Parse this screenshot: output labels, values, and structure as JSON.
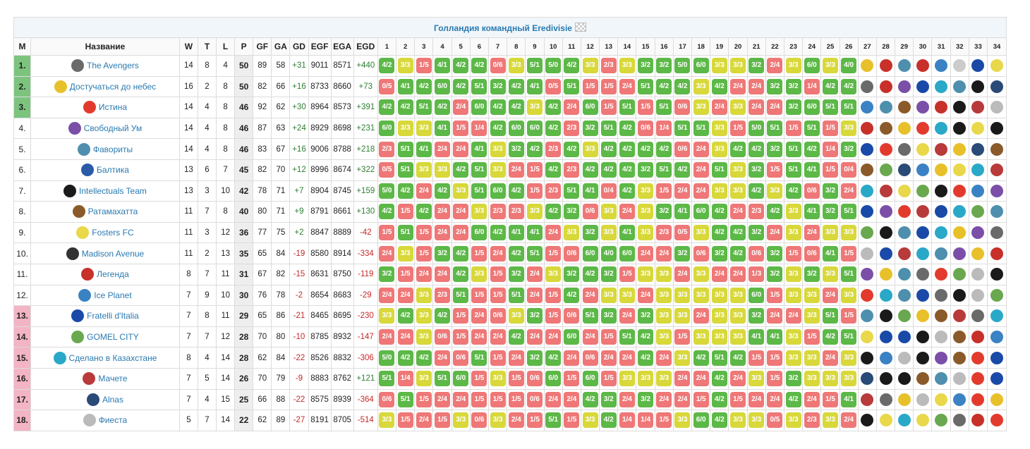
{
  "table": {
    "title": "Голландия командный Eredivisie",
    "title_flag_icon": "checkered-flag-icon",
    "headers": [
      "М",
      "Название",
      "W",
      "T",
      "L",
      "P",
      "GF",
      "GA",
      "GD",
      "EGF",
      "EGA",
      "EGD"
    ],
    "rounds": [
      "1",
      "2",
      "3",
      "4",
      "5",
      "6",
      "7",
      "8",
      "9",
      "10",
      "11",
      "12",
      "13",
      "14",
      "15",
      "16",
      "17",
      "18",
      "19",
      "20",
      "21",
      "22",
      "23",
      "24",
      "25",
      "26",
      "27",
      "28",
      "29",
      "30",
      "31",
      "32",
      "33",
      "34"
    ],
    "teams": [
      {
        "pos": "1.",
        "zone": "green",
        "name": "The Avengers",
        "logo_color": "#6a6a6a",
        "w": "14",
        "t": "8",
        "l": "4",
        "p": "50",
        "gf": "89",
        "ga": "58",
        "gd": "+31",
        "egf": "9011",
        "ega": "8571",
        "egd": "+440"
      },
      {
        "pos": "2.",
        "zone": "green",
        "name": "Достучаться до небес",
        "logo_color": "#e8c02a",
        "w": "16",
        "t": "2",
        "l": "8",
        "p": "50",
        "gf": "82",
        "ga": "66",
        "gd": "+16",
        "egf": "8733",
        "ega": "8660",
        "egd": "+73"
      },
      {
        "pos": "3.",
        "zone": "green",
        "name": "Истина",
        "logo_color": "#e23b2e",
        "w": "14",
        "t": "4",
        "l": "8",
        "p": "46",
        "gf": "92",
        "ga": "62",
        "gd": "+30",
        "egf": "8964",
        "ega": "8573",
        "egd": "+391"
      },
      {
        "pos": "4.",
        "zone": "",
        "name": "Свободный Ум",
        "logo_color": "#7b4fa8",
        "w": "14",
        "t": "4",
        "l": "8",
        "p": "46",
        "gf": "87",
        "ga": "63",
        "gd": "+24",
        "egf": "8929",
        "ega": "8698",
        "egd": "+231"
      },
      {
        "pos": "5.",
        "zone": "",
        "name": "Фавориты",
        "logo_color": "#4e8fae",
        "w": "14",
        "t": "4",
        "l": "8",
        "p": "46",
        "gf": "83",
        "ga": "67",
        "gd": "+16",
        "egf": "9006",
        "ega": "8788",
        "egd": "+218"
      },
      {
        "pos": "6.",
        "zone": "",
        "name": "Балтика",
        "logo_color": "#2a5aa8",
        "w": "13",
        "t": "6",
        "l": "7",
        "p": "45",
        "gf": "82",
        "ga": "70",
        "gd": "+12",
        "egf": "8996",
        "ega": "8674",
        "egd": "+322"
      },
      {
        "pos": "7.",
        "zone": "",
        "name": "Intellectuals Team",
        "logo_color": "#1a1a1a",
        "w": "13",
        "t": "3",
        "l": "10",
        "p": "42",
        "gf": "78",
        "ga": "71",
        "gd": "+7",
        "egf": "8904",
        "ega": "8745",
        "egd": "+159"
      },
      {
        "pos": "8.",
        "zone": "",
        "name": "Ратамахатта",
        "logo_color": "#8a5a2a",
        "w": "11",
        "t": "7",
        "l": "8",
        "p": "40",
        "gf": "80",
        "ga": "71",
        "gd": "+9",
        "egf": "8791",
        "ega": "8661",
        "egd": "+130"
      },
      {
        "pos": "9.",
        "zone": "",
        "name": "Fosters FC",
        "logo_color": "#e8d84a",
        "w": "11",
        "t": "3",
        "l": "12",
        "p": "36",
        "gf": "77",
        "ga": "75",
        "gd": "+2",
        "egf": "8847",
        "ega": "8889",
        "egd": "-42"
      },
      {
        "pos": "10.",
        "zone": "",
        "name": "Madison Avenue",
        "logo_color": "#333333",
        "w": "11",
        "t": "2",
        "l": "13",
        "p": "35",
        "gf": "65",
        "ga": "84",
        "gd": "-19",
        "egf": "8580",
        "ega": "8914",
        "egd": "-334"
      },
      {
        "pos": "11.",
        "zone": "",
        "name": "Легенда",
        "logo_color": "#c8302a",
        "w": "8",
        "t": "7",
        "l": "11",
        "p": "31",
        "gf": "67",
        "ga": "82",
        "gd": "-15",
        "egf": "8631",
        "ega": "8750",
        "egd": "-119"
      },
      {
        "pos": "12.",
        "zone": "",
        "name": "Ice Planet",
        "logo_color": "#3a82c4",
        "w": "7",
        "t": "9",
        "l": "10",
        "p": "30",
        "gf": "76",
        "ga": "78",
        "gd": "-2",
        "egf": "8654",
        "ega": "8683",
        "egd": "-29"
      },
      {
        "pos": "13.",
        "zone": "pink",
        "name": "Fratelli d'Italia",
        "logo_color": "#1a4aa8",
        "w": "7",
        "t": "8",
        "l": "11",
        "p": "29",
        "gf": "65",
        "ga": "86",
        "gd": "-21",
        "egf": "8465",
        "ega": "8695",
        "egd": "-230"
      },
      {
        "pos": "14.",
        "zone": "pink",
        "name": "GOMEL CITY",
        "logo_color": "#6aa84f",
        "w": "7",
        "t": "7",
        "l": "12",
        "p": "28",
        "gf": "70",
        "ga": "80",
        "gd": "-10",
        "egf": "8785",
        "ega": "8932",
        "egd": "-147"
      },
      {
        "pos": "15.",
        "zone": "pink",
        "name": "Сделано в Казахстане",
        "logo_color": "#2aa8c8",
        "w": "8",
        "t": "4",
        "l": "14",
        "p": "28",
        "gf": "62",
        "ga": "84",
        "gd": "-22",
        "egf": "8526",
        "ega": "8832",
        "egd": "-306"
      },
      {
        "pos": "16.",
        "zone": "pink",
        "name": "Мачете",
        "logo_color": "#b83a3a",
        "w": "7",
        "t": "5",
        "l": "14",
        "p": "26",
        "gf": "70",
        "ga": "79",
        "gd": "-9",
        "egf": "8883",
        "ega": "8762",
        "egd": "+121"
      },
      {
        "pos": "17.",
        "zone": "pink",
        "name": "Alnas",
        "logo_color": "#2a4a78",
        "w": "7",
        "t": "4",
        "l": "15",
        "p": "25",
        "gf": "66",
        "ga": "88",
        "gd": "-22",
        "egf": "8575",
        "ega": "8939",
        "egd": "-364"
      },
      {
        "pos": "18.",
        "zone": "pink",
        "name": "Фиеста",
        "logo_color": "#bbbbbb",
        "w": "5",
        "t": "7",
        "l": "14",
        "p": "22",
        "gf": "62",
        "ga": "89",
        "gd": "-27",
        "egf": "8191",
        "ega": "8705",
        "egd": "-514"
      }
    ],
    "results": [
      [
        "4/2",
        "3/3",
        "1/5",
        "4/1",
        "4/2",
        "4/2",
        "0/6",
        "3/3",
        "5/1",
        "5/0",
        "4/2",
        "3/3",
        "2/3",
        "3/3",
        "3/2",
        "3/2",
        "5/0",
        "6/0",
        "3/3",
        "3/3",
        "3/2",
        "2/4",
        "3/3",
        "6/0",
        "3/3",
        "4/0"
      ],
      [
        "0/5",
        "4/1",
        "4/2",
        "6/0",
        "4/2",
        "5/1",
        "3/2",
        "4/2",
        "4/1",
        "0/5",
        "5/1",
        "1/5",
        "1/5",
        "2/4",
        "5/1",
        "4/2",
        "4/2",
        "3/3",
        "4/2",
        "2/4",
        "2/4",
        "3/2",
        "3/2",
        "1/4",
        "4/2",
        "4/2"
      ],
      [
        "4/2",
        "4/2",
        "5/1",
        "4/2",
        "2/4",
        "6/0",
        "4/2",
        "4/2",
        "3/3",
        "4/2",
        "2/4",
        "6/0",
        "1/5",
        "5/1",
        "1/5",
        "5/1",
        "0/6",
        "3/3",
        "2/4",
        "3/3",
        "2/4",
        "2/4",
        "3/2",
        "6/0",
        "5/1",
        "5/1"
      ],
      [
        "6/0",
        "3/3",
        "3/3",
        "4/1",
        "1/5",
        "1/4",
        "4/2",
        "6/0",
        "6/0",
        "4/2",
        "2/3",
        "3/2",
        "5/1",
        "4/2",
        "0/6",
        "1/4",
        "5/1",
        "5/1",
        "3/3",
        "1/5",
        "5/0",
        "5/1",
        "1/5",
        "5/1",
        "1/5",
        "3/3"
      ],
      [
        "2/3",
        "5/1",
        "4/1",
        "2/4",
        "2/4",
        "4/1",
        "3/3",
        "3/2",
        "4/2",
        "2/3",
        "4/2",
        "3/3",
        "4/2",
        "4/2",
        "4/2",
        "4/2",
        "0/6",
        "2/4",
        "3/3",
        "4/2",
        "4/2",
        "3/2",
        "5/1",
        "4/2",
        "1/4",
        "3/2"
      ],
      [
        "0/5",
        "5/1",
        "3/3",
        "3/3",
        "4/2",
        "5/1",
        "3/3",
        "2/4",
        "1/5",
        "4/2",
        "2/3",
        "4/2",
        "4/2",
        "4/2",
        "3/2",
        "5/1",
        "4/2",
        "2/4",
        "5/1",
        "3/3",
        "3/2",
        "1/5",
        "5/1",
        "4/1",
        "1/5",
        "0/4"
      ],
      [
        "5/0",
        "4/2",
        "2/4",
        "4/2",
        "3/3",
        "5/1",
        "6/0",
        "4/2",
        "1/5",
        "2/3",
        "5/1",
        "4/1",
        "0/4",
        "4/2",
        "3/3",
        "1/5",
        "2/4",
        "2/4",
        "3/3",
        "3/3",
        "4/2",
        "3/3",
        "4/2",
        "0/6",
        "3/2",
        "2/4"
      ],
      [
        "4/2",
        "1/5",
        "4/2",
        "2/4",
        "2/4",
        "3/3",
        "2/3",
        "2/3",
        "3/3",
        "4/2",
        "3/2",
        "0/6",
        "3/3",
        "2/4",
        "3/3",
        "3/2",
        "4/1",
        "6/0",
        "4/2",
        "2/4",
        "2/3",
        "4/2",
        "3/3",
        "4/1",
        "3/2",
        "5/1"
      ],
      [
        "1/5",
        "5/1",
        "1/5",
        "2/4",
        "2/4",
        "6/0",
        "4/2",
        "4/1",
        "4/1",
        "2/4",
        "3/3",
        "3/2",
        "3/3",
        "4/1",
        "3/3",
        "2/3",
        "0/5",
        "3/3",
        "4/2",
        "4/2",
        "3/2",
        "2/4",
        "3/3",
        "2/4",
        "3/3",
        "3/3"
      ],
      [
        "2/4",
        "3/3",
        "1/5",
        "3/2",
        "4/2",
        "1/5",
        "2/4",
        "4/2",
        "5/1",
        "1/5",
        "0/6",
        "6/0",
        "4/0",
        "6/0",
        "2/4",
        "2/4",
        "3/2",
        "0/6",
        "3/2",
        "4/2",
        "0/6",
        "3/2",
        "1/5",
        "0/6",
        "4/1",
        "1/5"
      ],
      [
        "3/2",
        "1/5",
        "2/4",
        "2/4",
        "4/2",
        "3/3",
        "1/5",
        "3/2",
        "2/4",
        "3/3",
        "3/2",
        "4/2",
        "3/2",
        "1/5",
        "3/3",
        "3/3",
        "2/4",
        "3/3",
        "2/4",
        "2/4",
        "1/3",
        "3/2",
        "3/3",
        "3/2",
        "3/3",
        "5/1"
      ],
      [
        "2/4",
        "2/4",
        "3/3",
        "2/3",
        "5/1",
        "1/5",
        "1/5",
        "5/1",
        "2/4",
        "1/5",
        "4/2",
        "2/4",
        "3/3",
        "3/3",
        "2/4",
        "3/3",
        "3/3",
        "3/3",
        "3/3",
        "3/3",
        "6/0",
        "1/5",
        "3/3",
        "3/3",
        "2/4",
        "3/3"
      ],
      [
        "3/3",
        "4/2",
        "3/3",
        "4/2",
        "1/5",
        "2/4",
        "0/6",
        "3/3",
        "3/2",
        "1/5",
        "0/6",
        "5/1",
        "3/2",
        "2/4",
        "3/2",
        "3/3",
        "3/3",
        "2/4",
        "3/3",
        "3/3",
        "3/2",
        "2/4",
        "2/4",
        "3/3",
        "5/1",
        "1/5"
      ],
      [
        "2/4",
        "2/4",
        "3/3",
        "0/6",
        "1/5",
        "2/4",
        "2/4",
        "4/2",
        "2/4",
        "2/4",
        "6/0",
        "2/4",
        "1/5",
        "5/1",
        "4/2",
        "3/3",
        "1/5",
        "3/3",
        "3/3",
        "3/3",
        "4/1",
        "4/1",
        "3/3",
        "1/5",
        "4/2",
        "5/1"
      ],
      [
        "5/0",
        "4/2",
        "4/2",
        "2/4",
        "0/6",
        "5/1",
        "1/5",
        "2/4",
        "3/2",
        "4/2",
        "2/4",
        "0/6",
        "2/4",
        "2/4",
        "4/2",
        "2/4",
        "3/3",
        "4/2",
        "5/1",
        "4/2",
        "1/5",
        "1/5",
        "3/3",
        "3/3",
        "2/4",
        "3/3"
      ],
      [
        "5/1",
        "1/4",
        "3/3",
        "5/1",
        "6/0",
        "1/5",
        "3/3",
        "1/5",
        "0/6",
        "6/0",
        "1/5",
        "6/0",
        "1/5",
        "3/3",
        "3/3",
        "3/3",
        "2/4",
        "2/4",
        "4/2",
        "2/4",
        "3/3",
        "1/5",
        "3/2",
        "3/3",
        "3/3",
        "3/3"
      ],
      [
        "0/6",
        "5/1",
        "1/5",
        "2/4",
        "2/4",
        "1/5",
        "1/5",
        "1/5",
        "0/6",
        "2/4",
        "2/4",
        "4/2",
        "3/2",
        "2/4",
        "3/2",
        "2/4",
        "2/4",
        "1/5",
        "4/2",
        "1/5",
        "2/4",
        "2/4",
        "4/2",
        "2/4",
        "1/5",
        "4/1"
      ],
      [
        "3/3",
        "1/5",
        "2/4",
        "1/5",
        "3/3",
        "0/6",
        "3/3",
        "2/4",
        "1/5",
        "5/1",
        "1/5",
        "3/3",
        "4/2",
        "1/4",
        "1/4",
        "1/5",
        "3/3",
        "6/0",
        "4/2",
        "3/3",
        "3/3",
        "0/5",
        "3/3",
        "2/3",
        "3/3",
        "2/4"
      ]
    ],
    "future_opponents": [
      [
        "#e8c02a",
        "#c8302a",
        "#4e8fae",
        "#c8302a",
        "#3a82c4",
        "#cccccc",
        "#1a4aa8",
        "#e8d84a"
      ],
      [
        "#6a6a6a",
        "#c8302a",
        "#7b4fa8",
        "#1a4aa8",
        "#2aa8c8",
        "#4e8fae",
        "#1a1a1a",
        "#2a4a78"
      ],
      [
        "#3a82c4",
        "#4e8fae",
        "#8a5a2a",
        "#7b4fa8",
        "#c8302a",
        "#1a1a1a",
        "#b83a3a",
        "#bbbbbb"
      ],
      [
        "#c8302a",
        "#8a5a2a",
        "#e8c02a",
        "#e23b2e",
        "#2aa8c8",
        "#1a1a1a",
        "#e8d84a",
        "#1a1a1a"
      ],
      [
        "#1a4aa8",
        "#e23b2e",
        "#6a6a6a",
        "#e8d84a",
        "#b83a3a",
        "#e8c02a",
        "#2a4a78",
        "#8a5a2a"
      ],
      [
        "#8a5a2a",
        "#6aa84f",
        "#2a4a78",
        "#3a82c4",
        "#e8c02a",
        "#e8d84a",
        "#2aa8c8",
        "#b83a3a"
      ],
      [
        "#2aa8c8",
        "#b83a3a",
        "#e8d84a",
        "#6aa84f",
        "#1a1a1a",
        "#e23b2e",
        "#3a82c4",
        "#7b4fa8"
      ],
      [
        "#1a4aa8",
        "#7b4fa8",
        "#e23b2e",
        "#b83a3a",
        "#1a4aa8",
        "#2aa8c8",
        "#6aa84f",
        "#4e8fae"
      ],
      [
        "#6aa84f",
        "#1a1a1a",
        "#4e8fae",
        "#1a4aa8",
        "#2aa8c8",
        "#e8c02a",
        "#7b4fa8",
        "#6a6a6a"
      ],
      [
        "#bbbbbb",
        "#1a4aa8",
        "#b83a3a",
        "#2aa8c8",
        "#4e8fae",
        "#7b4fa8",
        "#e8c02a",
        "#c8302a"
      ],
      [
        "#7b4fa8",
        "#e8c02a",
        "#4e8fae",
        "#6a6a6a",
        "#e23b2e",
        "#6aa84f",
        "#bbbbbb",
        "#1a1a1a"
      ],
      [
        "#e23b2e",
        "#2aa8c8",
        "#4e8fae",
        "#1a4aa8",
        "#6a6a6a",
        "#1a1a1a",
        "#bbbbbb",
        "#6aa84f"
      ],
      [
        "#4e8fae",
        "#1a1a1a",
        "#6aa84f",
        "#e8c02a",
        "#8a5a2a",
        "#b83a3a",
        "#6a6a6a",
        "#2aa8c8"
      ],
      [
        "#e8d84a",
        "#1a4aa8",
        "#1a4aa8",
        "#1a1a1a",
        "#bbbbbb",
        "#8a5a2a",
        "#c8302a",
        "#3a82c4"
      ],
      [
        "#1a1a1a",
        "#3a82c4",
        "#bbbbbb",
        "#1a1a1a",
        "#7b4fa8",
        "#8a5a2a",
        "#e23b2e",
        "#1a4aa8"
      ],
      [
        "#2a4a78",
        "#1a1a1a",
        "#1a1a1a",
        "#8a5a2a",
        "#4e8fae",
        "#bbbbbb",
        "#e23b2e",
        "#1a4aa8"
      ],
      [
        "#b83a3a",
        "#6a6a6a",
        "#e8c02a",
        "#bbbbbb",
        "#e8d84a",
        "#3a82c4",
        "#e23b2e",
        "#e8c02a"
      ],
      [
        "#1a1a1a",
        "#e8d84a",
        "#2aa8c8",
        "#e8d84a",
        "#6aa84f",
        "#6a6a6a",
        "#c8302a",
        "#e23b2e"
      ]
    ]
  }
}
